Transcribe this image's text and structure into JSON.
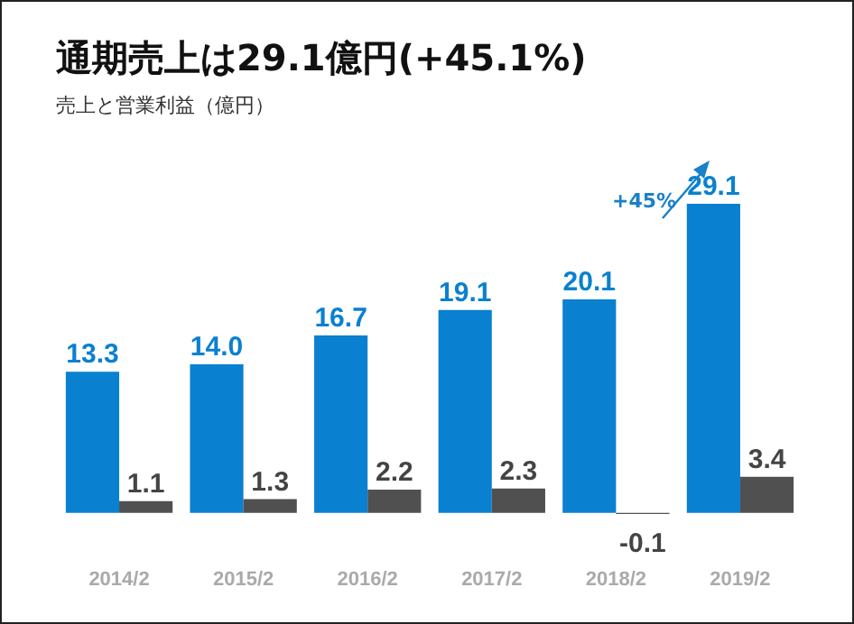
{
  "chart_data": {
    "type": "bar",
    "title": "通期売上は29.1億円(+45.1%)",
    "subtitle": "売上と営業利益（億円）",
    "categories": [
      "2014/2",
      "2015/2",
      "2016/2",
      "2017/2",
      "2018/2",
      "2019/2"
    ],
    "series": [
      {
        "color": "#0a80d0",
        "values": [
          13.3,
          14.0,
          16.7,
          19.1,
          20.1,
          29.1
        ],
        "value_labels": [
          "13.3",
          "14.0",
          "16.7",
          "19.1",
          "20.1",
          "29.1"
        ]
      },
      {
        "color": "#505050",
        "values": [
          1.1,
          1.3,
          2.2,
          2.3,
          -0.1,
          3.4
        ],
        "value_labels": [
          "1.1",
          "1.3",
          "2.2",
          "2.3",
          "-0.1",
          "3.4"
        ]
      }
    ],
    "annotations": [
      "+45%"
    ]
  }
}
